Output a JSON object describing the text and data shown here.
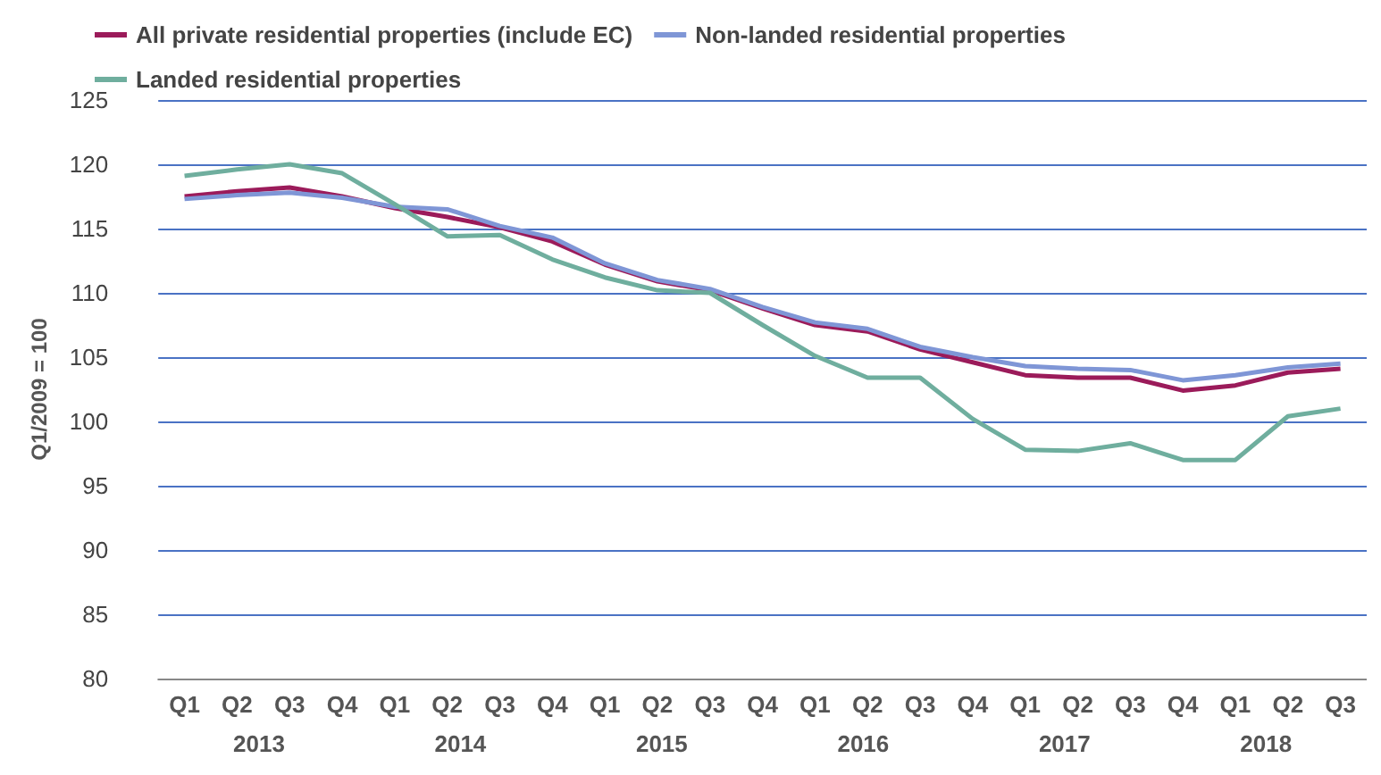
{
  "chart_data": {
    "type": "line",
    "ylabel": "Q1/2009 = 100",
    "categories": [
      "Q1",
      "Q2",
      "Q3",
      "Q4",
      "Q1",
      "Q2",
      "Q3",
      "Q4",
      "Q1",
      "Q2",
      "Q3",
      "Q4",
      "Q1",
      "Q2",
      "Q3",
      "Q4",
      "Q1",
      "Q2",
      "Q3",
      "Q4",
      "Q1",
      "Q2",
      "Q3"
    ],
    "annotations": [
      "2013",
      "2014",
      "2015",
      "2016",
      "2017",
      "2018"
    ],
    "series": [
      {
        "name": "All private residential properties (include EC)",
        "color": "#9b1b5a",
        "values": [
          117.5,
          117.9,
          118.2,
          117.5,
          116.6,
          115.9,
          115.1,
          114.0,
          112.2,
          110.9,
          110.2,
          108.8,
          107.5,
          107.0,
          105.6,
          104.6,
          103.6,
          103.4,
          103.4,
          102.4,
          102.8,
          103.8,
          104.1
        ]
      },
      {
        "name": "Non-landed residential properties",
        "color": "#7f96d6",
        "values": [
          117.3,
          117.6,
          117.8,
          117.4,
          116.7,
          116.5,
          115.2,
          114.3,
          112.3,
          111.0,
          110.3,
          108.9,
          107.7,
          107.2,
          105.8,
          105.0,
          104.3,
          104.1,
          104.0,
          103.2,
          103.6,
          104.2,
          104.5
        ]
      },
      {
        "name": "Landed residential properties",
        "color": "#6fae9e",
        "values": [
          119.1,
          119.6,
          120.0,
          119.3,
          116.9,
          114.4,
          114.5,
          112.6,
          111.2,
          110.2,
          110.0,
          107.5,
          105.1,
          103.4,
          103.4,
          100.2,
          97.8,
          97.7,
          98.3,
          97.0,
          97.0,
          100.4,
          101.0
        ]
      }
    ],
    "ylim": [
      80,
      125
    ],
    "yticks": [
      80,
      85,
      90,
      95,
      100,
      105,
      110,
      115,
      120,
      125
    ],
    "grid": "y",
    "legend": "top left",
    "marker": "none",
    "line_style": "solid"
  }
}
